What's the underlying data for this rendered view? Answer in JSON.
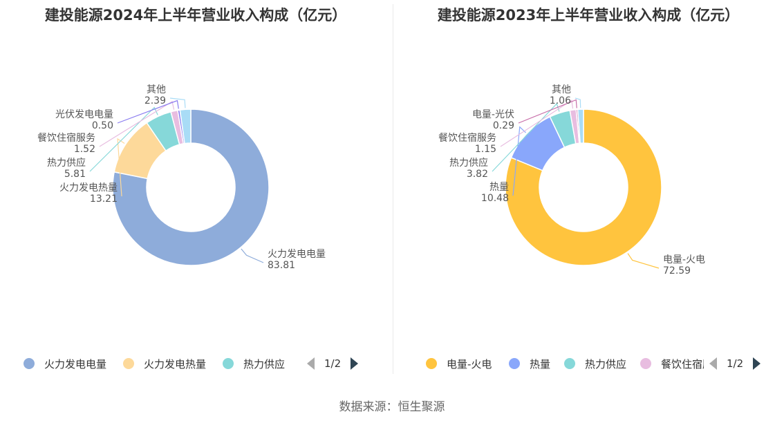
{
  "source_label": "数据来源：恒生聚源",
  "chart_data": [
    {
      "type": "pie",
      "title": "建投能源2024年上半年营业收入构成（亿元）",
      "slices": [
        {
          "name": "火力发电电量",
          "value": 83.81,
          "color": "#8eacda"
        },
        {
          "name": "火力发电热量",
          "value": 13.21,
          "color": "#fdd99a"
        },
        {
          "name": "热力供应",
          "value": 5.81,
          "color": "#86d8d9"
        },
        {
          "name": "餐饮住宿服务",
          "value": 1.52,
          "color": "#e8bde0"
        },
        {
          "name": "光伏发电电量",
          "value": 0.5,
          "color": "#8a7cf0"
        },
        {
          "name": "其他",
          "value": 2.39,
          "color": "#a9dcf6"
        }
      ],
      "value_labels": [
        "83.81",
        "13.21",
        "5.81",
        "1.52",
        "0.50",
        "2.39"
      ],
      "legend": {
        "items": [
          "火力发电电量",
          "火力发电热量",
          "热力供应"
        ],
        "page": "1/2",
        "position": "bottom"
      }
    },
    {
      "type": "pie",
      "title": "建投能源2023年上半年营业收入构成（亿元）",
      "slices": [
        {
          "name": "电量-火电",
          "value": 72.59,
          "color": "#ffc43e"
        },
        {
          "name": "热量",
          "value": 10.48,
          "color": "#89a7fb"
        },
        {
          "name": "热力供应",
          "value": 3.82,
          "color": "#86d8d9"
        },
        {
          "name": "餐饮住宿服务",
          "value": 1.15,
          "color": "#e8bde0"
        },
        {
          "name": "电量-光伏",
          "value": 0.29,
          "color": "#c86faa"
        },
        {
          "name": "其他",
          "value": 1.06,
          "color": "#a9dcf6"
        }
      ],
      "value_labels": [
        "72.59",
        "10.48",
        "3.82",
        "1.15",
        "0.29",
        "1.06"
      ],
      "legend": {
        "items": [
          "电量-火电",
          "热量",
          "热力供应",
          "餐饮住宿服务"
        ],
        "page": "1/2",
        "position": "bottom"
      }
    }
  ]
}
